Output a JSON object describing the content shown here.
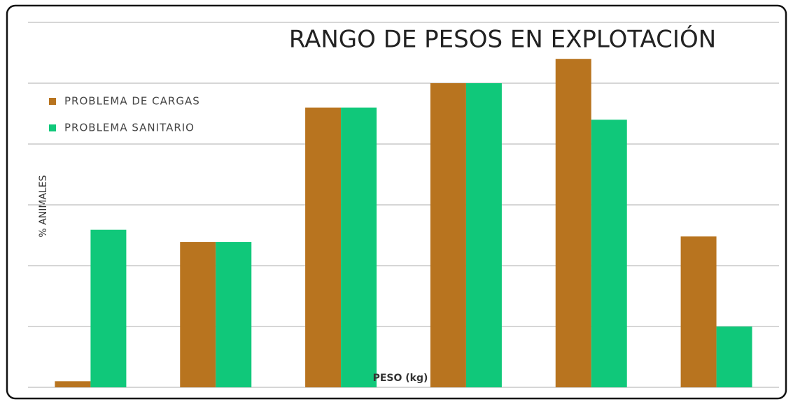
{
  "chart_data": {
    "type": "bar",
    "title": "RANGO DE PESOS EN EXPLOTACIÓN",
    "x_label": "PESO (kg)",
    "y_label": "% ANIMALES",
    "categories": [
      null,
      null,
      null,
      null,
      null,
      null
    ],
    "series": [
      {
        "name": "PROBLEMA DE CARGAS",
        "color": "#b8741f",
        "values": [
          0.1,
          2.39,
          4.6,
          5.0,
          5.4,
          2.48
        ]
      },
      {
        "name": "PROBLEMA SANITARIO",
        "color": "#10c87a",
        "values": [
          2.59,
          2.39,
          4.6,
          5.0,
          4.4,
          1.0
        ]
      }
    ],
    "ylim": [
      0,
      6
    ],
    "yticks": [
      0,
      1,
      2,
      3,
      4,
      5,
      6
    ],
    "grid": true,
    "legend": "top-left"
  }
}
